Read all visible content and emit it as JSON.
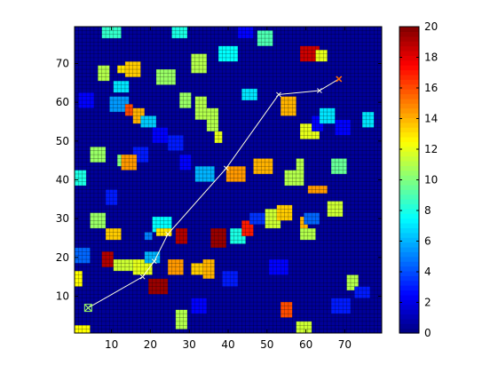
{
  "chart_data": {
    "type": "heatmap",
    "title": "",
    "xlabel": "",
    "ylabel": "",
    "grid_size": 79,
    "xlim": [
      1,
      79
    ],
    "ylim": [
      1,
      79
    ],
    "x_ticks": [
      "10",
      "20",
      "30",
      "40",
      "50",
      "60",
      "70"
    ],
    "y_ticks": [
      "10",
      "20",
      "30",
      "40",
      "50",
      "60",
      "70"
    ],
    "background_value": 0.5,
    "colorbar": {
      "min": 0,
      "max": 20,
      "ticks": [
        "0",
        "2",
        "4",
        "6",
        "8",
        "10",
        "12",
        "14",
        "16",
        "18",
        "20"
      ]
    },
    "blocks": [
      {
        "x": 8,
        "y": 77,
        "w": 5,
        "h": 3,
        "v": 8.5
      },
      {
        "x": 26,
        "y": 77,
        "w": 4,
        "h": 3,
        "v": 8
      },
      {
        "x": 43,
        "y": 77,
        "w": 4,
        "h": 3,
        "v": 2.5
      },
      {
        "x": 48,
        "y": 75,
        "w": 4,
        "h": 4,
        "v": 9
      },
      {
        "x": 31,
        "y": 68,
        "w": 4,
        "h": 5,
        "v": 11
      },
      {
        "x": 38,
        "y": 71,
        "w": 5,
        "h": 4,
        "v": 7.5
      },
      {
        "x": 59,
        "y": 71,
        "w": 5,
        "h": 4,
        "v": 18.5
      },
      {
        "x": 63,
        "y": 71,
        "w": 3,
        "h": 3,
        "v": 12
      },
      {
        "x": 7,
        "y": 66,
        "w": 3,
        "h": 4,
        "v": 11
      },
      {
        "x": 12,
        "y": 68,
        "w": 2,
        "h": 2,
        "v": 13
      },
      {
        "x": 14,
        "y": 67,
        "w": 4,
        "h": 4,
        "v": 13.5
      },
      {
        "x": 11,
        "y": 63,
        "w": 4,
        "h": 3,
        "v": 7
      },
      {
        "x": 22,
        "y": 65,
        "w": 5,
        "h": 4,
        "v": 10.5
      },
      {
        "x": 2,
        "y": 59,
        "w": 4,
        "h": 4,
        "v": 2.5
      },
      {
        "x": 10,
        "y": 58,
        "w": 5,
        "h": 4,
        "v": 5.5
      },
      {
        "x": 14,
        "y": 57,
        "w": 2,
        "h": 3,
        "v": 16
      },
      {
        "x": 16,
        "y": 55,
        "w": 3,
        "h": 4,
        "v": 14
      },
      {
        "x": 18,
        "y": 54,
        "w": 4,
        "h": 3,
        "v": 6.5
      },
      {
        "x": 28,
        "y": 59,
        "w": 3,
        "h": 4,
        "v": 10.5
      },
      {
        "x": 32,
        "y": 56,
        "w": 3,
        "h": 6,
        "v": 11
      },
      {
        "x": 35,
        "y": 53,
        "w": 3,
        "h": 6,
        "v": 11
      },
      {
        "x": 37,
        "y": 50,
        "w": 2,
        "h": 3,
        "v": 12
      },
      {
        "x": 44,
        "y": 61,
        "w": 4,
        "h": 3,
        "v": 7
      },
      {
        "x": 54,
        "y": 57,
        "w": 4,
        "h": 5,
        "v": 14
      },
      {
        "x": 59,
        "y": 51,
        "w": 5,
        "h": 4,
        "v": 12
      },
      {
        "x": 62,
        "y": 53,
        "w": 3,
        "h": 4,
        "v": 2.5
      },
      {
        "x": 64,
        "y": 55,
        "w": 4,
        "h": 4,
        "v": 7
      },
      {
        "x": 68,
        "y": 52,
        "w": 4,
        "h": 4,
        "v": 2.5
      },
      {
        "x": 75,
        "y": 54,
        "w": 3,
        "h": 4,
        "v": 7
      },
      {
        "x": 21,
        "y": 50,
        "w": 4,
        "h": 4,
        "v": 2.5
      },
      {
        "x": 25,
        "y": 48,
        "w": 4,
        "h": 4,
        "v": 3
      },
      {
        "x": 16,
        "y": 45,
        "w": 4,
        "h": 4,
        "v": 3
      },
      {
        "x": 5,
        "y": 45,
        "w": 4,
        "h": 4,
        "v": 10.5
      },
      {
        "x": 12,
        "y": 44,
        "w": 4,
        "h": 3,
        "v": 10
      },
      {
        "x": 13,
        "y": 43,
        "w": 4,
        "h": 4,
        "v": 14.5
      },
      {
        "x": 1,
        "y": 39,
        "w": 3,
        "h": 4,
        "v": 8
      },
      {
        "x": 9,
        "y": 34,
        "w": 3,
        "h": 4,
        "v": 3
      },
      {
        "x": 28,
        "y": 43,
        "w": 3,
        "h": 4,
        "v": 2.5
      },
      {
        "x": 32,
        "y": 40,
        "w": 5,
        "h": 4,
        "v": 6
      },
      {
        "x": 40,
        "y": 40,
        "w": 5,
        "h": 4,
        "v": 14.5
      },
      {
        "x": 47,
        "y": 42,
        "w": 5,
        "h": 4,
        "v": 14
      },
      {
        "x": 58,
        "y": 42,
        "w": 2,
        "h": 4,
        "v": 11
      },
      {
        "x": 55,
        "y": 39,
        "w": 5,
        "h": 4,
        "v": 11
      },
      {
        "x": 67,
        "y": 42,
        "w": 4,
        "h": 4,
        "v": 9.5
      },
      {
        "x": 61,
        "y": 37,
        "w": 5,
        "h": 2,
        "v": 14.5
      },
      {
        "x": 5,
        "y": 28,
        "w": 4,
        "h": 4,
        "v": 10.5
      },
      {
        "x": 9,
        "y": 25,
        "w": 4,
        "h": 3,
        "v": 13.5
      },
      {
        "x": 19,
        "y": 25,
        "w": 2,
        "h": 2,
        "v": 5
      },
      {
        "x": 21,
        "y": 27,
        "w": 5,
        "h": 4,
        "v": 7.5
      },
      {
        "x": 22,
        "y": 26,
        "w": 4,
        "h": 2,
        "v": 13
      },
      {
        "x": 27,
        "y": 24,
        "w": 3,
        "h": 4,
        "v": 19
      },
      {
        "x": 36,
        "y": 23,
        "w": 4,
        "h": 5,
        "v": 19.5
      },
      {
        "x": 41,
        "y": 24,
        "w": 4,
        "h": 4,
        "v": 8
      },
      {
        "x": 44,
        "y": 26,
        "w": 3,
        "h": 4,
        "v": 17
      },
      {
        "x": 46,
        "y": 29,
        "w": 4,
        "h": 3,
        "v": 3.5
      },
      {
        "x": 50,
        "y": 28,
        "w": 4,
        "h": 5,
        "v": 11.5
      },
      {
        "x": 53,
        "y": 30,
        "w": 4,
        "h": 4,
        "v": 13.5
      },
      {
        "x": 59,
        "y": 27,
        "w": 2,
        "h": 4,
        "v": 14
      },
      {
        "x": 59,
        "y": 25,
        "w": 4,
        "h": 3,
        "v": 11
      },
      {
        "x": 60,
        "y": 29,
        "w": 4,
        "h": 3,
        "v": 4.5
      },
      {
        "x": 66,
        "y": 31,
        "w": 4,
        "h": 4,
        "v": 11.5
      },
      {
        "x": 1,
        "y": 19,
        "w": 4,
        "h": 4,
        "v": 4.5
      },
      {
        "x": 8,
        "y": 18,
        "w": 3,
        "h": 4,
        "v": 19
      },
      {
        "x": 11,
        "y": 17,
        "w": 5,
        "h": 3,
        "v": 11.5
      },
      {
        "x": 16,
        "y": 16,
        "w": 5,
        "h": 4,
        "v": 12
      },
      {
        "x": 19,
        "y": 19,
        "w": 4,
        "h": 3,
        "v": 6
      },
      {
        "x": 25,
        "y": 16,
        "w": 4,
        "h": 4,
        "v": 14.5
      },
      {
        "x": 31,
        "y": 16,
        "w": 4,
        "h": 3,
        "v": 13.5
      },
      {
        "x": 34,
        "y": 15,
        "w": 3,
        "h": 5,
        "v": 14
      },
      {
        "x": 39,
        "y": 13,
        "w": 4,
        "h": 4,
        "v": 3
      },
      {
        "x": 51,
        "y": 16,
        "w": 5,
        "h": 4,
        "v": 2.5
      },
      {
        "x": 71,
        "y": 12,
        "w": 3,
        "h": 4,
        "v": 11
      },
      {
        "x": 73,
        "y": 10,
        "w": 4,
        "h": 3,
        "v": 3
      },
      {
        "x": 1,
        "y": 13,
        "w": 2,
        "h": 4,
        "v": 12.5
      },
      {
        "x": 20,
        "y": 11,
        "w": 5,
        "h": 4,
        "v": 19.5
      },
      {
        "x": 31,
        "y": 6,
        "w": 4,
        "h": 4,
        "v": 2.5
      },
      {
        "x": 27,
        "y": 2,
        "w": 3,
        "h": 5,
        "v": 11
      },
      {
        "x": 54,
        "y": 5,
        "w": 3,
        "h": 4,
        "v": 16
      },
      {
        "x": 67,
        "y": 6,
        "w": 5,
        "h": 4,
        "v": 3
      },
      {
        "x": 1,
        "y": 1,
        "w": 4,
        "h": 2,
        "v": 12.5
      },
      {
        "x": 58,
        "y": 1,
        "w": 4,
        "h": 3,
        "v": 11.5
      }
    ],
    "path": {
      "x": [
        4,
        18,
        21,
        24.5,
        39.5,
        53,
        63.5,
        68.5
      ],
      "y": [
        7,
        15,
        19,
        26,
        43,
        62,
        63,
        66
      ]
    },
    "start_marker": {
      "x": 4,
      "y": 7
    },
    "end_marker": {
      "x": 68.5,
      "y": 66
    }
  }
}
